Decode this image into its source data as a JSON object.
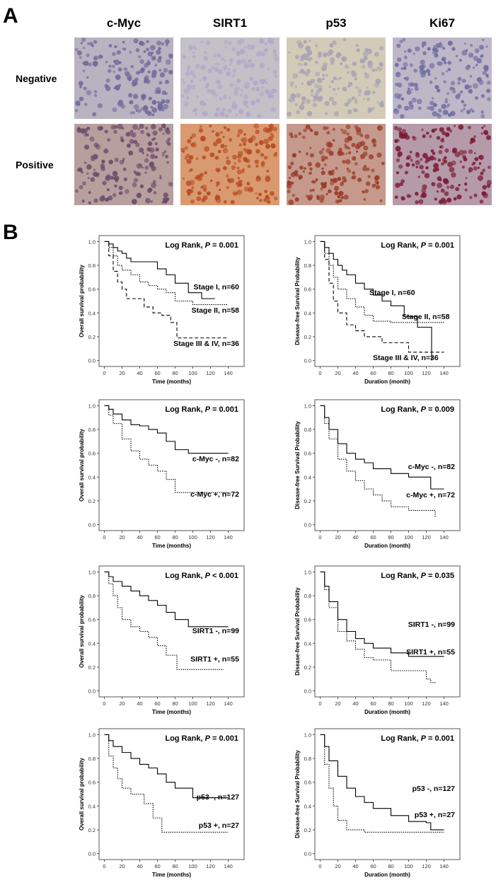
{
  "panel_a": {
    "letter": "A",
    "columns": [
      "c-Myc",
      "SIRT1",
      "p53",
      "Ki67"
    ],
    "rows": [
      "Negative",
      "Positive"
    ]
  },
  "panel_b": {
    "letter": "B"
  },
  "chart_data": [
    {
      "type": "step",
      "ylabel": "Overall survival probability",
      "xlabel": "Time (months)",
      "annotation": [
        "Log Rank, ",
        "P",
        " = 0.001"
      ],
      "xlim": [
        -6,
        158
      ],
      "ylim": [
        -0.05,
        1.05
      ],
      "xticks": [
        0,
        20,
        40,
        60,
        80,
        100,
        120,
        140
      ],
      "yticks": [
        {
          "value": 0,
          "label": "0.0"
        },
        0.2,
        0.4,
        0.6,
        0.8,
        {
          "value": 1,
          "label": "1.0"
        }
      ],
      "series": [
        {
          "name": "Stage I, n=60",
          "color": "#000",
          "dash": "solid",
          "x": [
            0,
            5,
            10,
            15,
            20,
            25,
            30,
            35,
            45,
            60,
            70,
            80,
            95,
            110,
            125
          ],
          "values": [
            1,
            0.98,
            0.95,
            0.92,
            0.9,
            0.86,
            0.83,
            0.83,
            0.83,
            0.77,
            0.72,
            0.65,
            0.57,
            0.52,
            0.52
          ]
        },
        {
          "name": "Stage II, n=58",
          "color": "#000",
          "dash": "dotted",
          "x": [
            0,
            5,
            10,
            15,
            20,
            30,
            40,
            50,
            60,
            70,
            80,
            100,
            140
          ],
          "values": [
            1,
            0.95,
            0.88,
            0.8,
            0.76,
            0.72,
            0.66,
            0.63,
            0.6,
            0.57,
            0.5,
            0.47,
            0.47
          ]
        },
        {
          "name": "Stage III & IV, n=36",
          "color": "#000",
          "dash": "dashed",
          "x": [
            0,
            5,
            10,
            15,
            20,
            25,
            35,
            45,
            55,
            65,
            75,
            82,
            140
          ],
          "values": [
            1,
            0.88,
            0.75,
            0.66,
            0.6,
            0.52,
            0.52,
            0.45,
            0.4,
            0.38,
            0.32,
            0.19,
            0.19
          ]
        }
      ]
    },
    {
      "type": "step",
      "ylabel": "Disease-free Survival Probability",
      "xlabel": "Duration (month)",
      "annotation": [
        "Log Rank, ",
        "P",
        " = 0.001"
      ],
      "xlim": [
        -6,
        158
      ],
      "ylim": [
        -0.05,
        1.05
      ],
      "xticks": [
        0,
        20,
        40,
        60,
        80,
        100,
        120,
        140
      ],
      "yticks": [
        {
          "value": 0,
          "label": "0.0"
        },
        0.2,
        0.4,
        0.6,
        0.8,
        {
          "value": 1,
          "label": "1.0"
        }
      ],
      "series": [
        {
          "name": "Stage I, n=60",
          "color": "#000",
          "dash": "solid",
          "x": [
            0,
            5,
            10,
            15,
            20,
            25,
            30,
            40,
            50,
            60,
            70,
            80,
            95,
            110,
            125,
            126
          ],
          "values": [
            1,
            0.95,
            0.9,
            0.85,
            0.8,
            0.76,
            0.72,
            0.65,
            0.6,
            0.55,
            0.5,
            0.46,
            0.37,
            0.28,
            0.28,
            0
          ]
        },
        {
          "name": "Stage II, n=58",
          "color": "#000",
          "dash": "dotted",
          "x": [
            0,
            5,
            10,
            15,
            20,
            30,
            40,
            50,
            60,
            80,
            140
          ],
          "values": [
            1,
            0.9,
            0.8,
            0.7,
            0.6,
            0.52,
            0.45,
            0.38,
            0.33,
            0.32,
            0.32
          ]
        },
        {
          "name": "Stage III & IV, n=36",
          "color": "#000",
          "dash": "dashed",
          "x": [
            0,
            5,
            10,
            15,
            20,
            30,
            40,
            50,
            70,
            100,
            140
          ],
          "values": [
            1,
            0.85,
            0.65,
            0.5,
            0.4,
            0.3,
            0.25,
            0.2,
            0.15,
            0.07,
            0.07
          ]
        }
      ]
    },
    {
      "type": "step",
      "ylabel": "Overall survival probability",
      "xlabel": "Time (months)",
      "annotation": [
        "Log Rank, ",
        "P",
        " = 0.001"
      ],
      "xlim": [
        -6,
        158
      ],
      "ylim": [
        -0.05,
        1.05
      ],
      "xticks": [
        0,
        20,
        40,
        60,
        80,
        100,
        120,
        140
      ],
      "yticks": [
        {
          "value": 0,
          "label": "0.0"
        },
        0.2,
        0.4,
        0.6,
        0.8,
        {
          "value": 1,
          "label": "1.0"
        }
      ],
      "series": [
        {
          "name": "c-Myc -, n=82",
          "color": "#000",
          "dash": "solid",
          "x": [
            0,
            5,
            10,
            20,
            30,
            40,
            50,
            60,
            70,
            80,
            95,
            140
          ],
          "values": [
            1,
            0.97,
            0.93,
            0.88,
            0.84,
            0.83,
            0.8,
            0.77,
            0.7,
            0.63,
            0.6,
            0.6
          ]
        },
        {
          "name": "c-Myc +, n=72",
          "color": "#000",
          "dash": "dotted",
          "x": [
            0,
            5,
            10,
            20,
            30,
            40,
            50,
            60,
            70,
            80,
            140
          ],
          "values": [
            1,
            0.92,
            0.85,
            0.72,
            0.62,
            0.55,
            0.5,
            0.45,
            0.38,
            0.27,
            0.27
          ]
        }
      ]
    },
    {
      "type": "step",
      "ylabel": "Disease-free Survival Probability",
      "xlabel": "Duration (month)",
      "annotation": [
        "Log Rank, ",
        "P",
        " = 0.009"
      ],
      "xlim": [
        -6,
        158
      ],
      "ylim": [
        -0.05,
        1.05
      ],
      "xticks": [
        0,
        20,
        40,
        60,
        80,
        100,
        120,
        140
      ],
      "yticks": [
        {
          "value": 0,
          "label": "0.0"
        },
        0.2,
        0.4,
        0.6,
        0.8,
        {
          "value": 1,
          "label": "1.0"
        }
      ],
      "series": [
        {
          "name": "c-Myc -, n=82",
          "color": "#000",
          "dash": "solid",
          "x": [
            0,
            5,
            10,
            20,
            30,
            40,
            50,
            60,
            80,
            100,
            125,
            140
          ],
          "values": [
            1,
            0.9,
            0.8,
            0.68,
            0.6,
            0.55,
            0.52,
            0.47,
            0.43,
            0.4,
            0.3,
            0.3
          ]
        },
        {
          "name": "c-Myc +, n=72",
          "color": "#000",
          "dash": "dotted",
          "x": [
            0,
            5,
            10,
            20,
            30,
            40,
            50,
            60,
            70,
            80,
            100,
            130
          ],
          "values": [
            1,
            0.85,
            0.72,
            0.55,
            0.45,
            0.37,
            0.3,
            0.25,
            0.2,
            0.15,
            0.12,
            0.06
          ]
        }
      ]
    },
    {
      "type": "step",
      "ylabel": "Overall survival probability",
      "xlabel": "Time (months)",
      "annotation": [
        "Log Rank, ",
        "P",
        " < 0.001"
      ],
      "xlim": [
        -6,
        158
      ],
      "ylim": [
        -0.05,
        1.05
      ],
      "xticks": [
        0,
        20,
        40,
        60,
        80,
        100,
        120,
        140
      ],
      "yticks": [
        {
          "value": 0,
          "label": "0.0"
        },
        0.2,
        0.4,
        0.6,
        0.8,
        {
          "value": 1,
          "label": "1.0"
        }
      ],
      "series": [
        {
          "name": "SIRT1 -, n=99",
          "color": "#000",
          "dash": "solid",
          "x": [
            0,
            5,
            10,
            20,
            30,
            40,
            50,
            60,
            70,
            80,
            95,
            140
          ],
          "values": [
            1,
            0.96,
            0.92,
            0.88,
            0.84,
            0.8,
            0.76,
            0.72,
            0.66,
            0.6,
            0.54,
            0.54
          ]
        },
        {
          "name": "SIRT1 +, n=55",
          "color": "#000",
          "dash": "dotted",
          "x": [
            0,
            5,
            10,
            15,
            20,
            30,
            40,
            50,
            60,
            70,
            82,
            135
          ],
          "values": [
            1,
            0.9,
            0.8,
            0.7,
            0.6,
            0.54,
            0.5,
            0.45,
            0.38,
            0.3,
            0.18,
            0.18
          ]
        }
      ]
    },
    {
      "type": "step",
      "ylabel": "Disease-free Survival Probability",
      "xlabel": "Duration (month)",
      "annotation": [
        "Log Rank, ",
        "P",
        " = 0.035"
      ],
      "xlim": [
        -6,
        158
      ],
      "ylim": [
        -0.05,
        1.05
      ],
      "xticks": [
        0,
        20,
        40,
        60,
        80,
        100,
        120,
        140
      ],
      "yticks": [
        {
          "value": 0,
          "label": "0.0"
        },
        0.2,
        0.4,
        0.6,
        0.8,
        {
          "value": 1,
          "label": "1.0"
        }
      ],
      "series": [
        {
          "name": "SIRT1 -, n=99",
          "color": "#000",
          "dash": "solid",
          "x": [
            0,
            5,
            10,
            20,
            30,
            40,
            50,
            60,
            80,
            100,
            140
          ],
          "values": [
            1,
            0.88,
            0.75,
            0.6,
            0.5,
            0.44,
            0.4,
            0.36,
            0.32,
            0.29,
            0.29
          ]
        },
        {
          "name": "SIRT1 +, n=55",
          "color": "#000",
          "dash": "dotted",
          "x": [
            0,
            5,
            10,
            20,
            30,
            40,
            50,
            60,
            80,
            120,
            125,
            130
          ],
          "values": [
            1,
            0.85,
            0.7,
            0.5,
            0.42,
            0.35,
            0.28,
            0.26,
            0.17,
            0.1,
            0.07,
            0.06
          ]
        }
      ]
    },
    {
      "type": "step",
      "ylabel": "Overall survival probability",
      "xlabel": "Time (months)",
      "annotation": [
        "Log Rank, ",
        "P",
        " = 0.001"
      ],
      "xlim": [
        -6,
        158
      ],
      "ylim": [
        -0.05,
        1.05
      ],
      "xticks": [
        0,
        20,
        40,
        60,
        80,
        100,
        120,
        140
      ],
      "yticks": [
        {
          "value": 0,
          "label": "0.0"
        },
        0.2,
        0.4,
        0.6,
        0.8,
        {
          "value": 1,
          "label": "1.0"
        }
      ],
      "series": [
        {
          "name": "p53 -, n=127",
          "color": "#000",
          "dash": "solid",
          "x": [
            0,
            5,
            10,
            20,
            30,
            40,
            50,
            60,
            70,
            80,
            100,
            140
          ],
          "values": [
            1,
            0.95,
            0.9,
            0.85,
            0.8,
            0.75,
            0.72,
            0.67,
            0.6,
            0.55,
            0.47,
            0.47
          ]
        },
        {
          "name": "p53 +, n=27",
          "color": "#000",
          "dash": "dotted",
          "x": [
            0,
            5,
            10,
            15,
            20,
            30,
            45,
            55,
            65,
            140
          ],
          "values": [
            1,
            0.82,
            0.72,
            0.63,
            0.55,
            0.5,
            0.42,
            0.3,
            0.18,
            0.18
          ]
        }
      ]
    },
    {
      "type": "step",
      "ylabel": "Disease-free Survival Probability",
      "xlabel": "Duration (month)",
      "annotation": [
        "Log Rank, ",
        "P",
        " = 0.001"
      ],
      "xlim": [
        -6,
        158
      ],
      "ylim": [
        -0.05,
        1.05
      ],
      "xticks": [
        0,
        20,
        40,
        60,
        80,
        100,
        120,
        140
      ],
      "yticks": [
        {
          "value": 0,
          "label": "0.0"
        },
        0.2,
        0.4,
        0.6,
        0.8,
        {
          "value": 1,
          "label": "1.0"
        }
      ],
      "series": [
        {
          "name": "p53 -, n=127",
          "color": "#000",
          "dash": "solid",
          "x": [
            0,
            5,
            10,
            20,
            30,
            40,
            50,
            60,
            80,
            100,
            120,
            125,
            140
          ],
          "values": [
            1,
            0.9,
            0.78,
            0.65,
            0.55,
            0.48,
            0.43,
            0.38,
            0.32,
            0.27,
            0.26,
            0.2,
            0.2
          ]
        },
        {
          "name": "p53 +, n=27",
          "color": "#000",
          "dash": "dotted",
          "x": [
            0,
            5,
            10,
            15,
            20,
            30,
            50,
            140
          ],
          "values": [
            1,
            0.75,
            0.55,
            0.4,
            0.28,
            0.2,
            0.18,
            0.18
          ]
        }
      ]
    }
  ]
}
